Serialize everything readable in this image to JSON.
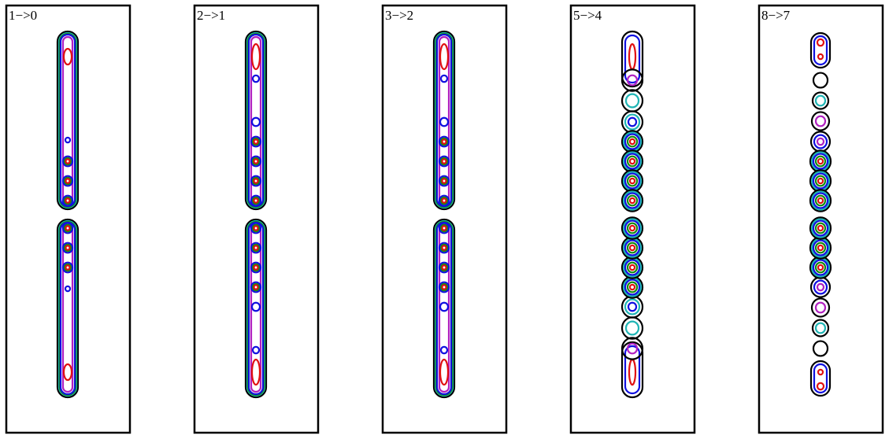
{
  "panels": [
    {
      "label": "1−>0"
    },
    {
      "label": "2−>1"
    },
    {
      "label": "3−>2"
    },
    {
      "label": "5−>4"
    },
    {
      "label": "8−>7"
    }
  ]
}
